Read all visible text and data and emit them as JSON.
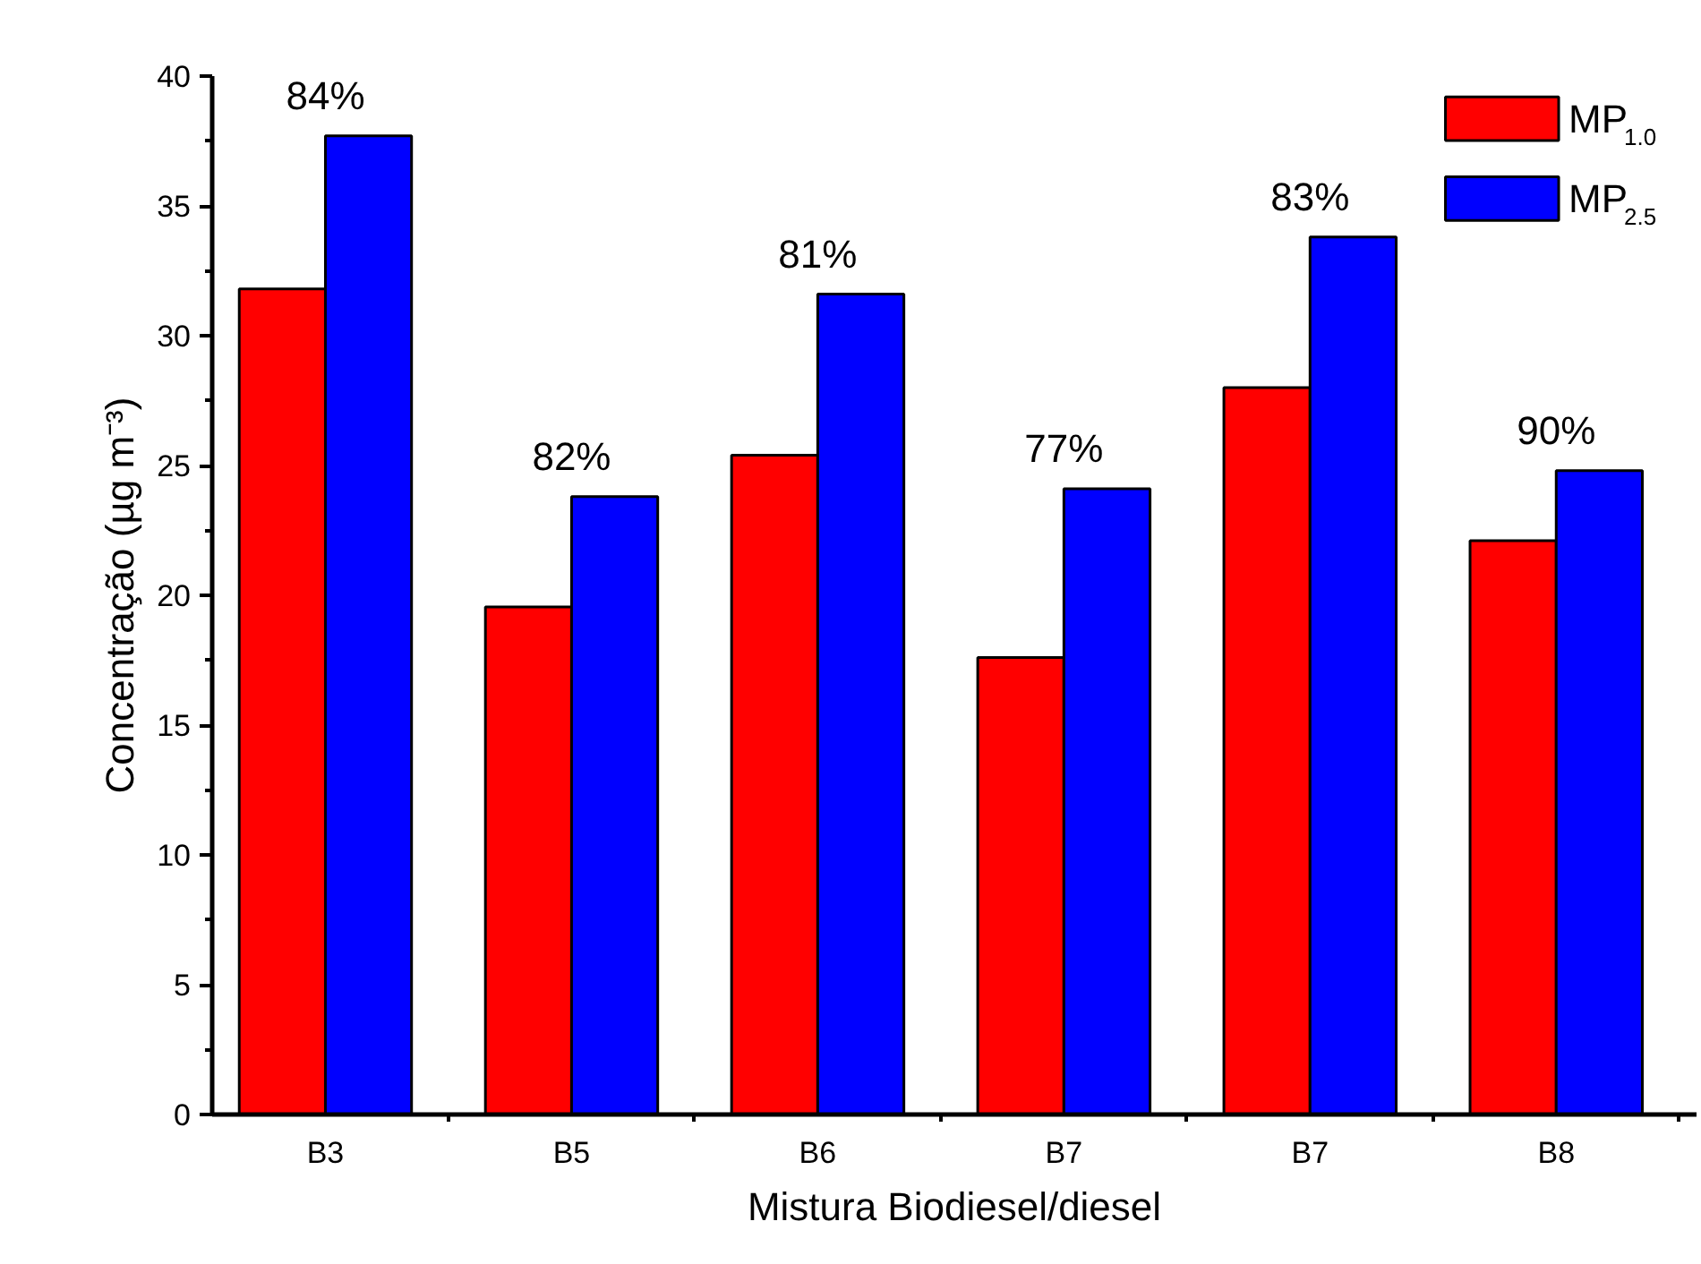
{
  "chart_data": {
    "type": "bar",
    "xlabel": "Mistura Biodiesel/diesel",
    "ylabel": "Concentração (µg m⁻³)",
    "categories": [
      "B3",
      "B5",
      "B6",
      "B7",
      "B7",
      "B8"
    ],
    "series": [
      {
        "name": "MP$_{1.0}$",
        "color": "#ff0000",
        "values": [
          31.8,
          19.55,
          25.4,
          17.6,
          28.0,
          22.1
        ]
      },
      {
        "name": "MP$_{2.5}$",
        "color": "#0000ff",
        "values": [
          37.7,
          23.8,
          31.6,
          24.1,
          33.8,
          24.8
        ]
      }
    ],
    "ylim": [
      0,
      40
    ],
    "yticks": [
      0,
      5,
      10,
      15,
      20,
      25,
      30,
      35,
      40
    ],
    "annotations": [
      "84%",
      "82%",
      "81%",
      "77%",
      "83%",
      "90%"
    ],
    "grid": false,
    "legend": "top right"
  }
}
